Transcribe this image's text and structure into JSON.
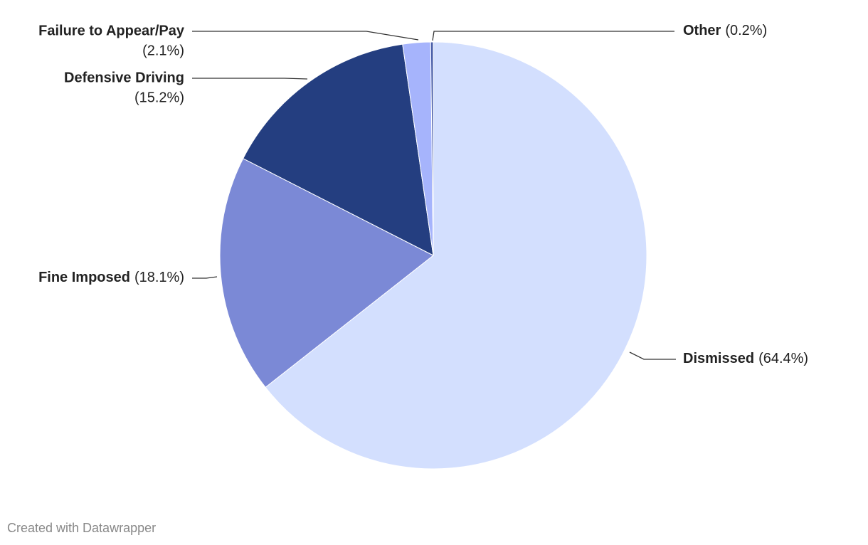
{
  "chart_data": {
    "type": "pie",
    "categories": [
      "Dismissed",
      "Fine Imposed",
      "Defensive Driving",
      "Failure to Appear/Pay",
      "Other"
    ],
    "values": [
      64.4,
      18.1,
      15.2,
      2.1,
      0.2
    ],
    "value_labels": [
      "(64.4%)",
      "(18.1%)",
      "(15.2%)",
      "(2.1%)",
      "(0.2%)"
    ],
    "colors": [
      "#d3dffe",
      "#7b89d6",
      "#243e80",
      "#a6b4fc",
      "#4a5fa8"
    ],
    "credit": "Created with Datawrapper"
  }
}
